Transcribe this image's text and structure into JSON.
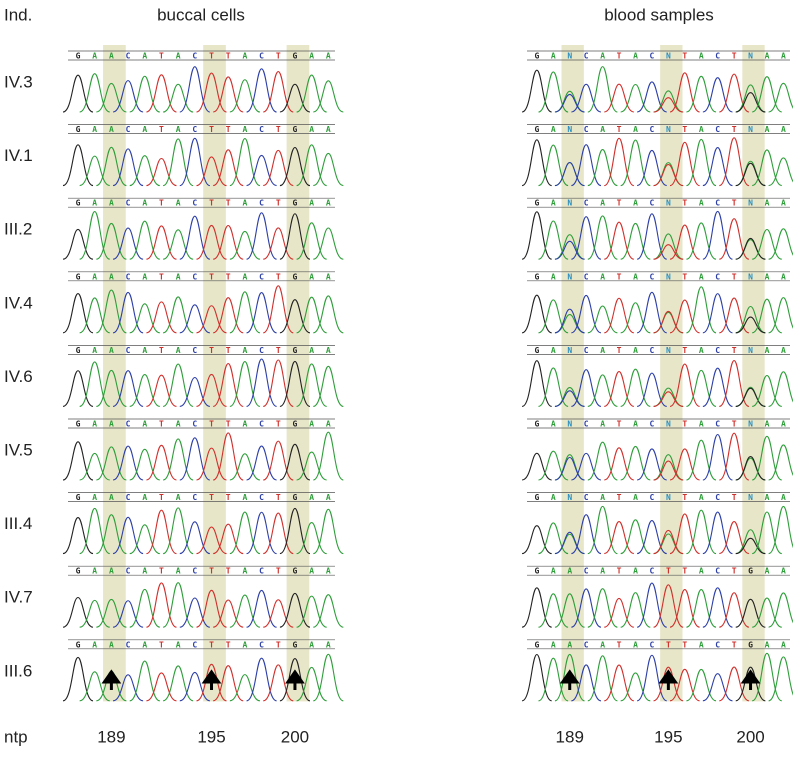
{
  "header": {
    "individual_label": "Ind.",
    "position_label": "ntp"
  },
  "individuals": [
    "IV.3",
    "IV.1",
    "III.2",
    "IV.4",
    "IV.6",
    "IV.5",
    "III.4",
    "IV.7",
    "III.6"
  ],
  "positions": [
    "189",
    "195",
    "200"
  ],
  "panels": [
    {
      "title": "buccal cells",
      "rows": [
        [
          "G",
          "A",
          "A",
          "C",
          "A",
          "T",
          "A",
          "C",
          "T",
          "T",
          "A",
          "C",
          "T",
          "G",
          "A",
          "A"
        ],
        [
          "G",
          "A",
          "A",
          "C",
          "A",
          "T",
          "A",
          "C",
          "T",
          "T",
          "A",
          "C",
          "T",
          "G",
          "A",
          "A"
        ],
        [
          "G",
          "A",
          "A",
          "C",
          "A",
          "T",
          "A",
          "C",
          "T",
          "T",
          "A",
          "C",
          "T",
          "G",
          "A",
          "A"
        ],
        [
          "G",
          "A",
          "A",
          "C",
          "A",
          "T",
          "A",
          "C",
          "T",
          "T",
          "A",
          "C",
          "T",
          "G",
          "A",
          "A"
        ],
        [
          "G",
          "A",
          "A",
          "C",
          "A",
          "T",
          "A",
          "C",
          "T",
          "T",
          "A",
          "C",
          "T",
          "G",
          "A",
          "A"
        ],
        [
          "G",
          "A",
          "A",
          "C",
          "A",
          "T",
          "A",
          "C",
          "T",
          "T",
          "A",
          "C",
          "T",
          "G",
          "A",
          "A"
        ],
        [
          "G",
          "A",
          "A",
          "C",
          "A",
          "T",
          "A",
          "C",
          "T",
          "T",
          "A",
          "C",
          "T",
          "G",
          "A",
          "A"
        ],
        [
          "G",
          "A",
          "A",
          "C",
          "A",
          "T",
          "A",
          "C",
          "T",
          "T",
          "A",
          "C",
          "T",
          "G",
          "A",
          "A"
        ],
        [
          "G",
          "A",
          "A",
          "C",
          "A",
          "T",
          "A",
          "C",
          "T",
          "T",
          "A",
          "C",
          "T",
          "G",
          "A",
          "A"
        ]
      ]
    },
    {
      "title": "blood samples",
      "rows": [
        [
          "G",
          "A",
          "N",
          "C",
          "A",
          "T",
          "A",
          "C",
          "N",
          "T",
          "A",
          "C",
          "T",
          "N",
          "A",
          "A"
        ],
        [
          "G",
          "A",
          "N",
          "C",
          "A",
          "T",
          "A",
          "C",
          "N",
          "T",
          "A",
          "C",
          "T",
          "N",
          "A",
          "A"
        ],
        [
          "G",
          "A",
          "N",
          "C",
          "A",
          "T",
          "A",
          "C",
          "N",
          "T",
          "A",
          "C",
          "T",
          "N",
          "A",
          "A"
        ],
        [
          "G",
          "A",
          "N",
          "C",
          "A",
          "T",
          "A",
          "C",
          "N",
          "T",
          "A",
          "C",
          "T",
          "N",
          "A",
          "A"
        ],
        [
          "G",
          "A",
          "N",
          "C",
          "A",
          "T",
          "A",
          "C",
          "N",
          "T",
          "A",
          "C",
          "T",
          "N",
          "A",
          "A"
        ],
        [
          "G",
          "A",
          "N",
          "C",
          "A",
          "T",
          "A",
          "C",
          "N",
          "T",
          "A",
          "C",
          "T",
          "N",
          "A",
          "A"
        ],
        [
          "G",
          "A",
          "N",
          "C",
          "A",
          "T",
          "A",
          "C",
          "N",
          "T",
          "A",
          "C",
          "T",
          "N",
          "A",
          "A"
        ],
        [
          "G",
          "A",
          "A",
          "C",
          "A",
          "T",
          "A",
          "C",
          "T",
          "T",
          "A",
          "C",
          "T",
          "G",
          "A",
          "A"
        ],
        [
          "G",
          "A",
          "A",
          "C",
          "A",
          "T",
          "A",
          "C",
          "T",
          "T",
          "A",
          "C",
          "T",
          "G",
          "A",
          "A"
        ]
      ]
    }
  ]
}
